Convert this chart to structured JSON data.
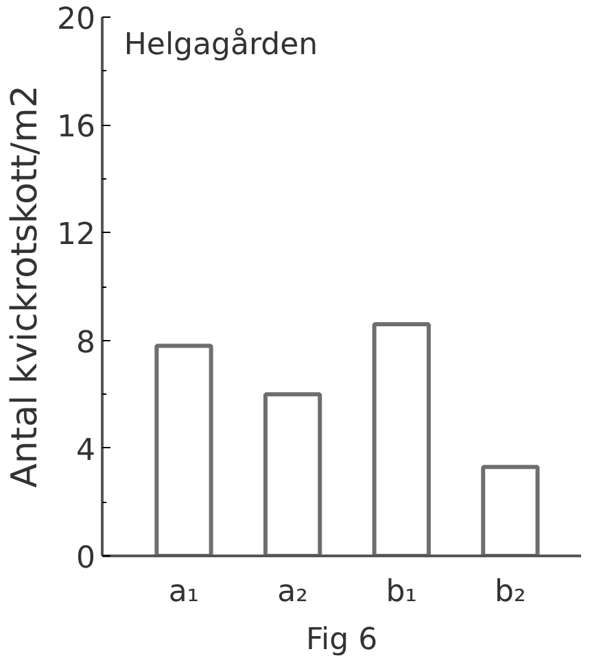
{
  "chart_data": {
    "type": "bar",
    "title": "Helgagården",
    "ylabel": "Antal kvickrotskott/m2",
    "categories": [
      "a₁",
      "a₂",
      "b₁",
      "b₂"
    ],
    "values": [
      7.8,
      6.0,
      8.6,
      3.3
    ],
    "color": "#6e6e6e",
    "ylim": [
      0,
      20
    ],
    "yticks": [
      0,
      4,
      8,
      12,
      16,
      20
    ],
    "annotations": [
      "Fig 6"
    ]
  }
}
